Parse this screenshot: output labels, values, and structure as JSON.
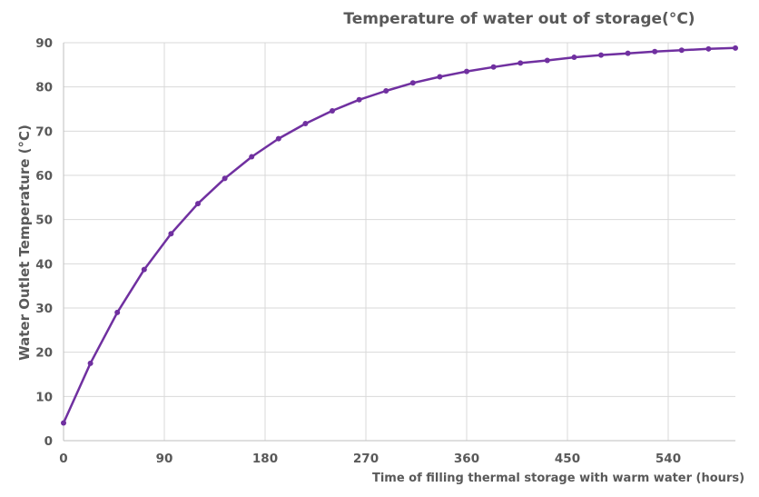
{
  "chart_data": {
    "type": "line",
    "title": "Temperature of water out of storage(°C)",
    "xlabel": "Time of filling thermal storage with warm water (hours)",
    "ylabel": "Water Outlet Temperature (°C)",
    "xlim": [
      0,
      600
    ],
    "ylim": [
      0,
      90
    ],
    "x_ticks": [
      0,
      90,
      180,
      270,
      360,
      450,
      540
    ],
    "y_ticks": [
      0,
      10,
      20,
      30,
      40,
      50,
      60,
      70,
      80,
      90
    ],
    "grid": true,
    "legend": "none",
    "series": [
      {
        "color": "#7030a0",
        "x": [
          0,
          24,
          48,
          72,
          96,
          120,
          144,
          168,
          192,
          216,
          240,
          264,
          288,
          312,
          336,
          360,
          384,
          408,
          432,
          456,
          480,
          504,
          528,
          552,
          576,
          600
        ],
        "y": [
          4,
          17.5,
          29,
          38.7,
          46.8,
          53.6,
          59.3,
          64.2,
          68.3,
          71.7,
          74.6,
          77.1,
          79.1,
          80.9,
          82.3,
          83.5,
          84.5,
          85.4,
          86,
          86.7,
          87.2,
          87.6,
          88,
          88.3,
          88.6,
          88.8
        ]
      }
    ]
  }
}
